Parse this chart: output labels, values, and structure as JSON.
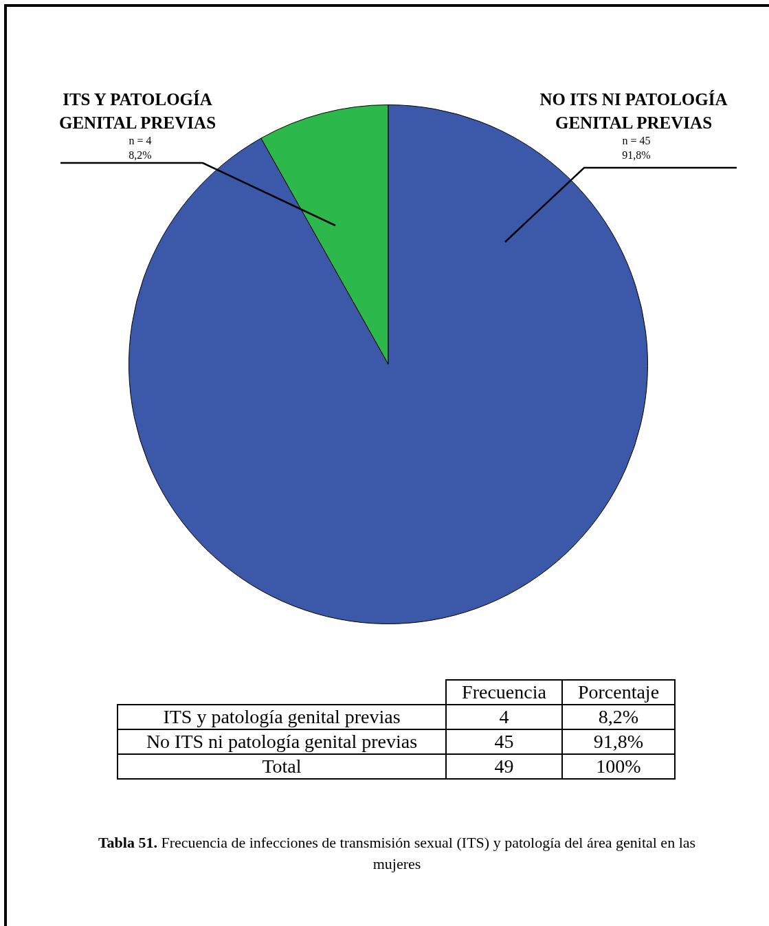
{
  "chart_data": {
    "type": "pie",
    "categories": [
      "ITS Y PATOLOGÍA GENITAL PREVIAS",
      "NO ITS NI PATOLOGÍA GENITAL PREVIAS"
    ],
    "values": [
      4,
      45
    ],
    "colors": [
      "#2db84b",
      "#3c58a8"
    ],
    "value_labels": [
      "n = 4\n8,2%",
      "n = 45\n91,8%"
    ],
    "legend": false,
    "annotations": [
      "Frecuencia",
      "Porcentaje",
      "ITS y patología genital previas",
      "4",
      "8,2%",
      "No ITS ni patología genital previas",
      "45",
      "91,8%",
      "Total",
      "49",
      "100%",
      "Tabla 51.",
      "Frecuencia de infecciones de transmisión sexual (ITS) y patología del área genital en las mujeres"
    ]
  }
}
